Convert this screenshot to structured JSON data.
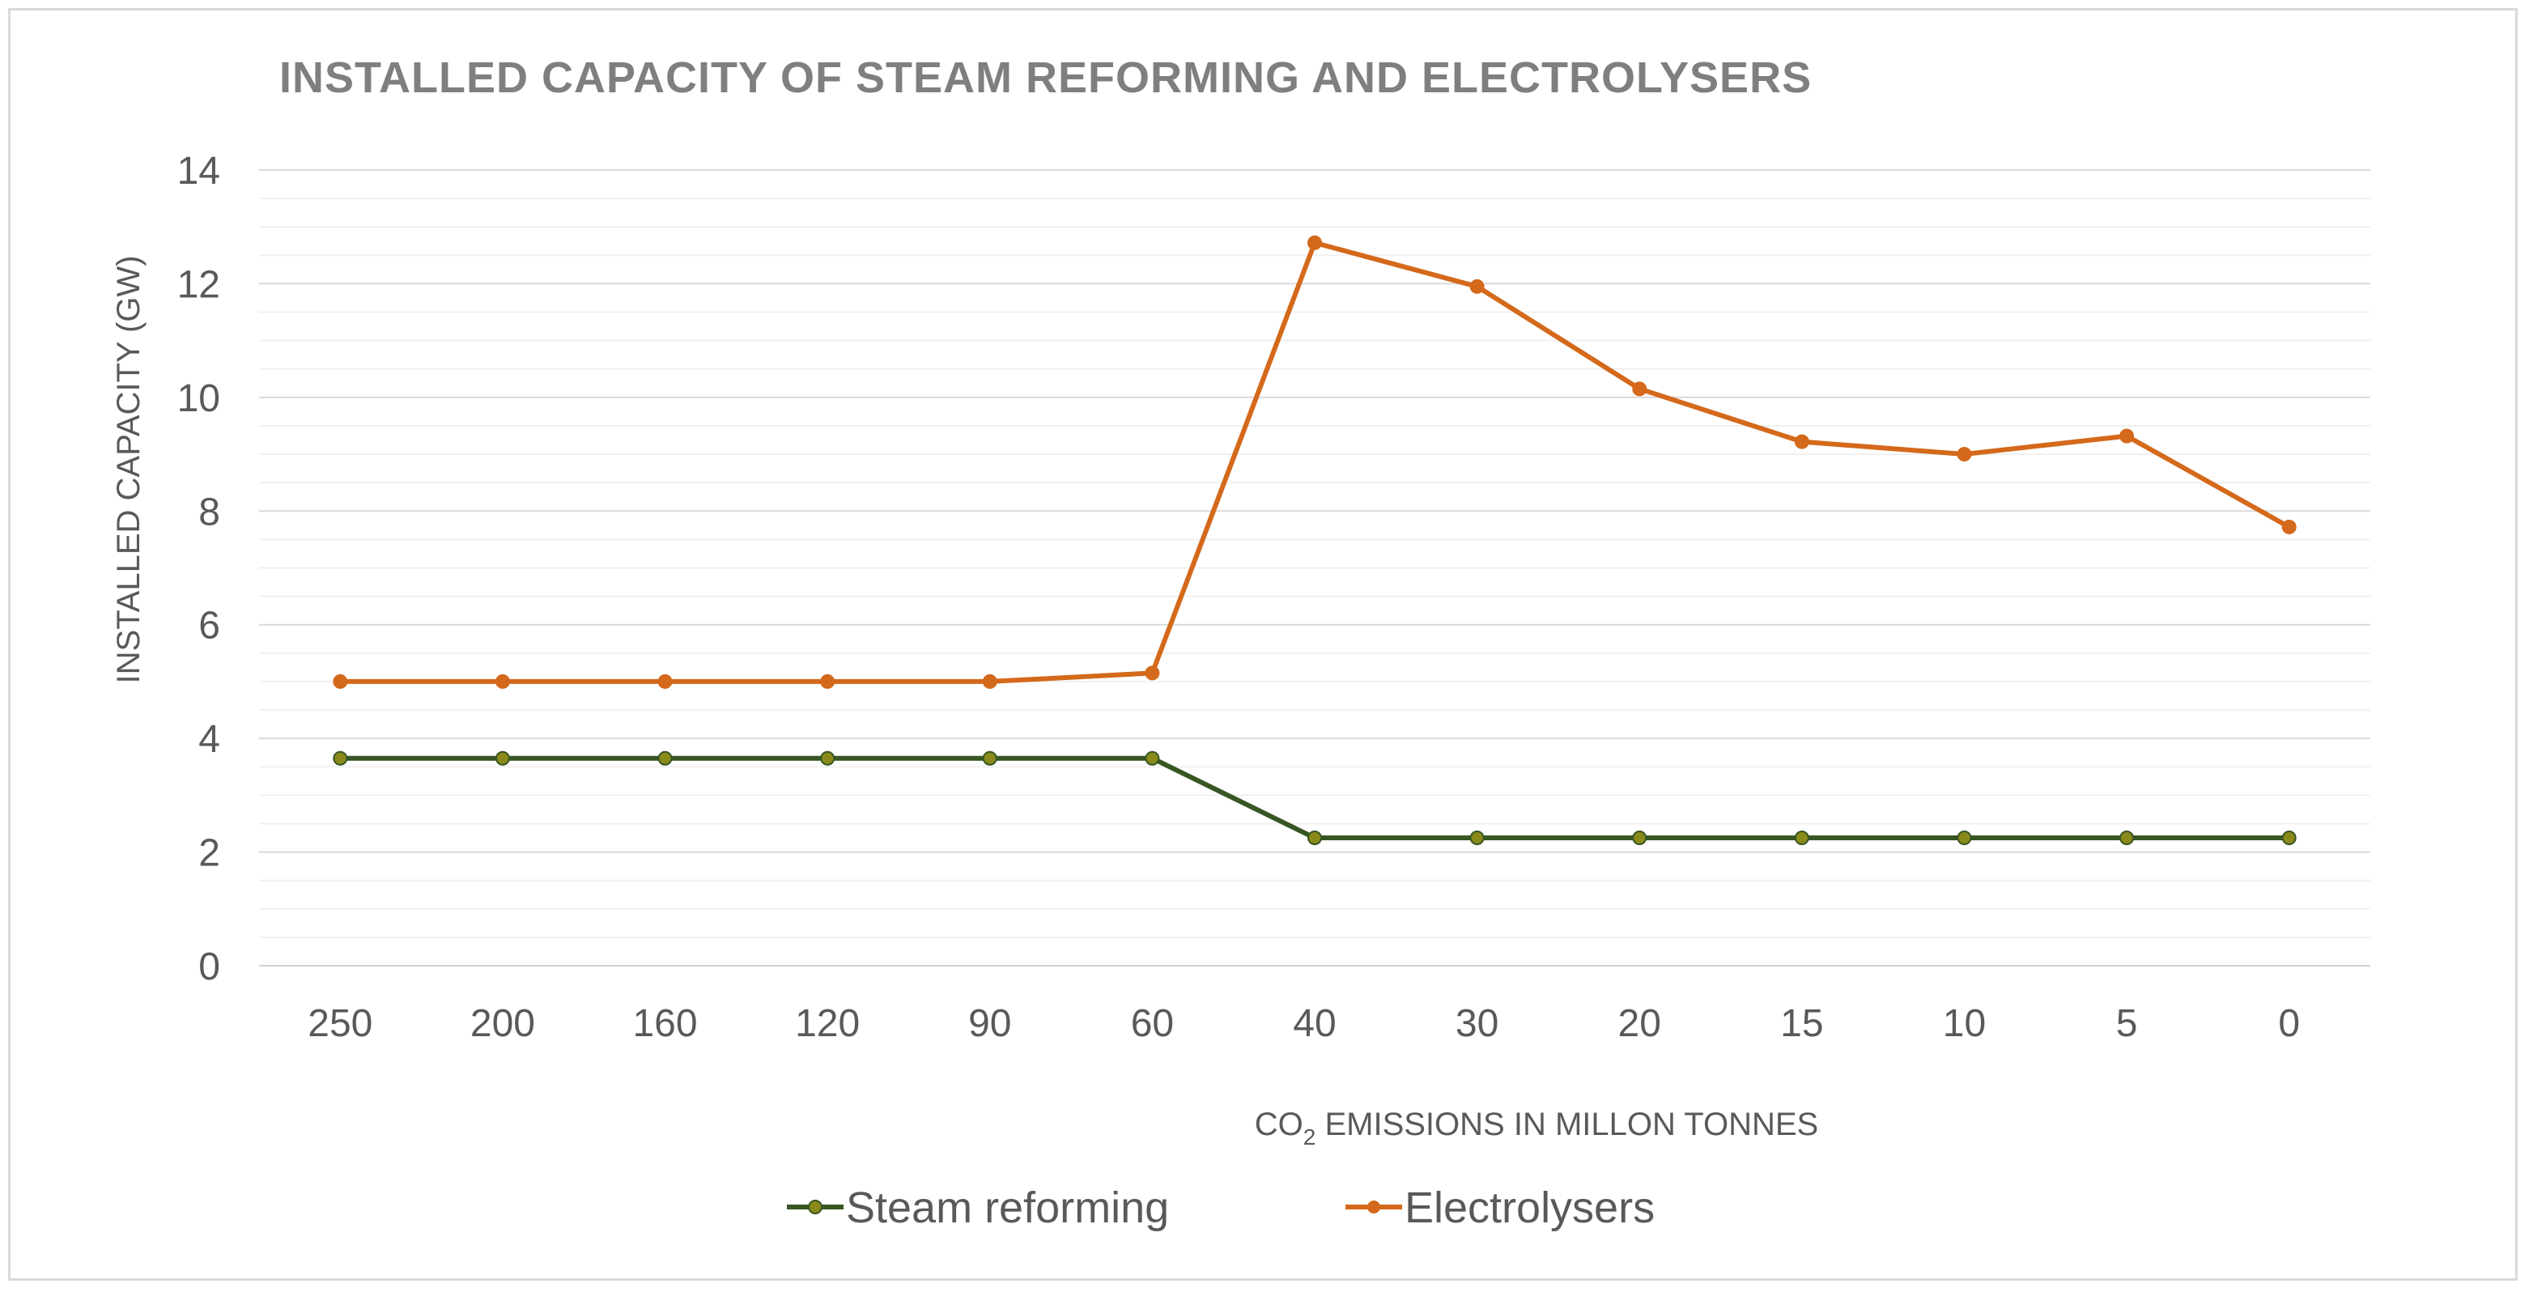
{
  "chart_data": {
    "type": "line",
    "title": "INSTALLED CAPACITY OF STEAM REFORMING AND  ELECTROLYSERS",
    "xlabel_prefix": "CO",
    "xlabel_subscript": "2",
    "xlabel_suffix": " EMISSIONS IN MILLON TONNES",
    "ylabel": "INSTALLED CAPACITY (GW)",
    "ylim": [
      0,
      14
    ],
    "yticks": [
      "0",
      "2",
      "4",
      "6",
      "8",
      "10",
      "12",
      "14"
    ],
    "categories": [
      "250",
      "200",
      "160",
      "120",
      "90",
      "60",
      "40",
      "30",
      "20",
      "15",
      "10",
      "5",
      "0"
    ],
    "series": [
      {
        "name": "Steam reforming",
        "color": "#375623",
        "marker_color": "#8a8a1a",
        "values": [
          3.65,
          3.65,
          3.65,
          3.65,
          3.65,
          3.65,
          2.25,
          2.25,
          2.25,
          2.25,
          2.25,
          2.25,
          2.25
        ]
      },
      {
        "name": "Electrolysers",
        "color": "#d4691b",
        "marker_color": "#d4691b",
        "values": [
          5.0,
          5.0,
          5.0,
          5.0,
          5.0,
          5.15,
          12.72,
          11.95,
          10.15,
          9.22,
          9.0,
          9.32,
          7.72
        ]
      }
    ],
    "legend_position": "bottom"
  }
}
